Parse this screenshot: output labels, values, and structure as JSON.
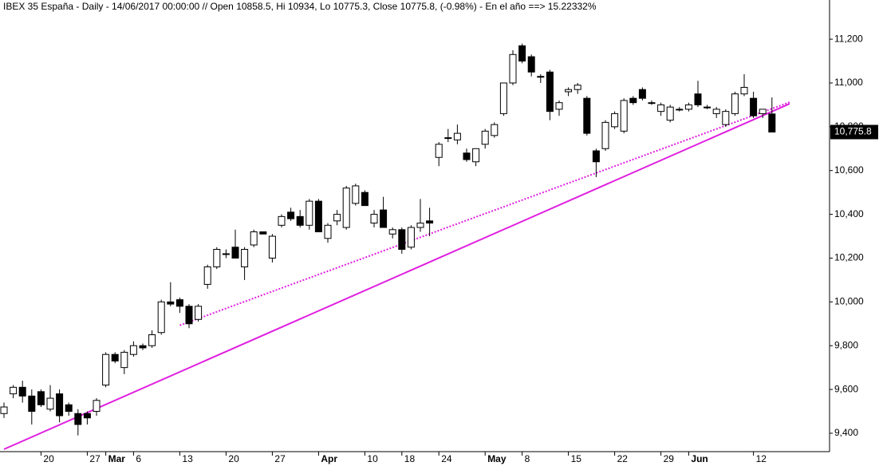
{
  "chart_data": {
    "type": "candlestick",
    "title": "IBEX 35 España - Daily - 14/06/2017 00:00:00 // Open 10858.5, Hi 10934, Lo 10775.3, Close 10775.8, (-0.98%) - En el año ==> 15.22332%",
    "categories": [
      null,
      null,
      null,
      null,
      "20",
      null,
      null,
      null,
      null,
      "27",
      null,
      "Mar",
      null,
      null,
      "6",
      null,
      null,
      null,
      null,
      "13",
      null,
      null,
      null,
      null,
      "20",
      null,
      null,
      null,
      null,
      "27",
      null,
      null,
      null,
      null,
      "Apr",
      null,
      null,
      null,
      null,
      "10",
      null,
      null,
      null,
      "18",
      null,
      null,
      null,
      "24",
      null,
      null,
      null,
      null,
      "May",
      null,
      null,
      null,
      "8",
      null,
      null,
      null,
      null,
      "15",
      null,
      null,
      null,
      null,
      "22",
      null,
      null,
      null,
      null,
      "29",
      null,
      null,
      "Jun",
      null,
      null,
      null,
      null,
      null,
      null,
      "12",
      null,
      null
    ],
    "open": [
      9490,
      9580,
      9610,
      9570,
      9590,
      9510,
      9580,
      9530,
      9490,
      9490,
      9500,
      9620,
      9760,
      9700,
      9760,
      9800,
      9800,
      9860,
      10000,
      10010,
      9980,
      9920,
      10080,
      10160,
      10220,
      10250,
      10160,
      10260,
      10320,
      10200,
      10350,
      10410,
      10390,
      10350,
      10460,
      10290,
      10370,
      10340,
      10450,
      10500,
      10360,
      10420,
      10310,
      10330,
      10250,
      10340,
      10370,
      10660,
      10750,
      10740,
      10680,
      10640,
      10720,
      10760,
      10860,
      11000,
      11170,
      11120,
      11030,
      11050,
      10880,
      10960,
      10970,
      10930,
      10690,
      10700,
      10800,
      10780,
      10930,
      10970,
      10910,
      10870,
      10830,
      10880,
      10880,
      10950,
      10890,
      10860,
      10810,
      10860,
      10950,
      10930,
      10860,
      10858.5
    ],
    "high": [
      9540,
      9620,
      9640,
      9600,
      9600,
      9620,
      9600,
      9540,
      9510,
      9500,
      9560,
      9770,
      9770,
      9780,
      9820,
      9810,
      9870,
      10010,
      10090,
      10020,
      9990,
      9990,
      10170,
      10250,
      10240,
      10330,
      10250,
      10330,
      10320,
      10310,
      10400,
      10430,
      10420,
      10470,
      10470,
      10360,
      10420,
      10530,
      10540,
      10510,
      10420,
      10480,
      10340,
      10340,
      10350,
      10470,
      10430,
      10730,
      10790,
      10810,
      10700,
      10700,
      10790,
      10820,
      11000,
      11150,
      11180,
      11130,
      11040,
      11060,
      10920,
      10980,
      11000,
      10940,
      10700,
      10830,
      10870,
      10930,
      10940,
      10980,
      10920,
      10910,
      10900,
      10890,
      10910,
      11010,
      10900,
      10890,
      10880,
      10960,
      11040,
      10960,
      10880,
      10934
    ],
    "low": [
      9470,
      9560,
      9540,
      9440,
      9520,
      9500,
      9450,
      9480,
      9390,
      9440,
      9480,
      9610,
      9720,
      9670,
      9750,
      9780,
      9790,
      9850,
      9980,
      9950,
      9880,
      9910,
      10060,
      10150,
      10200,
      10200,
      10100,
      10250,
      10310,
      10180,
      10340,
      10370,
      10340,
      10330,
      10320,
      10270,
      10350,
      10330,
      10440,
      10440,
      10340,
      10340,
      10290,
      10220,
      10240,
      10320,
      10300,
      10620,
      10730,
      10720,
      10640,
      10620,
      10700,
      10750,
      10850,
      10990,
      11090,
      11030,
      11000,
      10830,
      10850,
      10940,
      10950,
      10760,
      10570,
      10690,
      10790,
      10770,
      10900,
      10920,
      10900,
      10850,
      10820,
      10870,
      10870,
      10890,
      10880,
      10840,
      10800,
      10850,
      10940,
      10840,
      10840,
      10775.3
    ],
    "close": [
      9520,
      9610,
      9570,
      9500,
      9530,
      9560,
      9480,
      9500,
      9440,
      9470,
      9550,
      9760,
      9730,
      9770,
      9800,
      9790,
      9850,
      10000,
      9990,
      9980,
      9900,
      9980,
      10160,
      10240,
      10220,
      10200,
      10240,
      10320,
      10310,
      10300,
      10390,
      10380,
      10350,
      10460,
      10320,
      10350,
      10400,
      10520,
      10530,
      10440,
      10400,
      10340,
      10330,
      10240,
      10340,
      10360,
      10360,
      10720,
      10750,
      10770,
      10650,
      10700,
      10780,
      10810,
      11000,
      11130,
      11100,
      11050,
      11030,
      10870,
      10910,
      10970,
      10990,
      10770,
      10640,
      10820,
      10860,
      10920,
      10910,
      10930,
      10910,
      10900,
      10890,
      10880,
      10900,
      10900,
      10890,
      10880,
      10870,
      10950,
      10980,
      10850,
      10880,
      10775.8
    ],
    "up_color": "#ffffff",
    "down_color": "#000000",
    "ylim": [
      9316,
      11379
    ],
    "yticks": [
      {
        "value": 9400,
        "label": "9,400"
      },
      {
        "value": 9600,
        "label": "9,600"
      },
      {
        "value": 9800,
        "label": "9,800"
      },
      {
        "value": 10000,
        "label": "10,000"
      },
      {
        "value": 10200,
        "label": "10,200"
      },
      {
        "value": 10400,
        "label": "10,400"
      },
      {
        "value": 10600,
        "label": "10,600"
      },
      {
        "value": 10800,
        "label": "10,800"
      },
      {
        "value": 11000,
        "label": "11,000"
      },
      {
        "value": 11200,
        "label": "11,200"
      }
    ],
    "last_price": {
      "value": 10775.8,
      "label": "10,775.8"
    },
    "trendlines": [
      {
        "style": "solid",
        "color": "#e020e0",
        "from": [
          0,
          9327
        ],
        "to": [
          84.9,
          10905
        ]
      },
      {
        "style": "dotted",
        "color": "#e020e0",
        "from": [
          19,
          9893
        ],
        "to": [
          84.9,
          10912
        ]
      }
    ]
  }
}
